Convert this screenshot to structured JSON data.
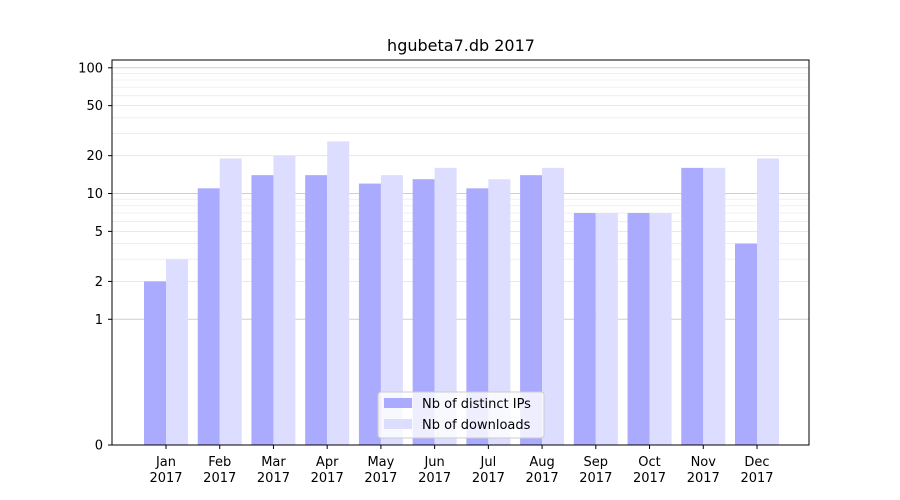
{
  "chart_data": {
    "type": "bar",
    "title": "hgubeta7.db 2017",
    "xlabel": "",
    "ylabel": "",
    "yscale": "symlog",
    "ylim": [
      0,
      100
    ],
    "yticks": [
      {
        "value": 0,
        "label": "0"
      },
      {
        "value": 1,
        "label": "1"
      },
      {
        "value": 2,
        "label": "2"
      },
      {
        "value": 5,
        "label": "5"
      },
      {
        "value": 10,
        "label": "10"
      },
      {
        "value": 20,
        "label": "20"
      },
      {
        "value": 50,
        "label": "50"
      },
      {
        "value": 100,
        "label": "100"
      }
    ],
    "categories": [
      {
        "month": "Jan",
        "year": "2017"
      },
      {
        "month": "Feb",
        "year": "2017"
      },
      {
        "month": "Mar",
        "year": "2017"
      },
      {
        "month": "Apr",
        "year": "2017"
      },
      {
        "month": "May",
        "year": "2017"
      },
      {
        "month": "Jun",
        "year": "2017"
      },
      {
        "month": "Jul",
        "year": "2017"
      },
      {
        "month": "Aug",
        "year": "2017"
      },
      {
        "month": "Sep",
        "year": "2017"
      },
      {
        "month": "Oct",
        "year": "2017"
      },
      {
        "month": "Nov",
        "year": "2017"
      },
      {
        "month": "Dec",
        "year": "2017"
      }
    ],
    "series": [
      {
        "name": "Nb of distinct IPs",
        "color": "#aaaaff",
        "values": [
          2,
          11,
          14,
          14,
          12,
          13,
          11,
          14,
          7,
          7,
          16,
          4
        ]
      },
      {
        "name": "Nb of downloads",
        "color": "#ddddff",
        "values": [
          3,
          19,
          20,
          26,
          14,
          16,
          13,
          16,
          7,
          7,
          16,
          19
        ]
      }
    ],
    "grid": "horizontal",
    "legend": "bottom-center"
  }
}
